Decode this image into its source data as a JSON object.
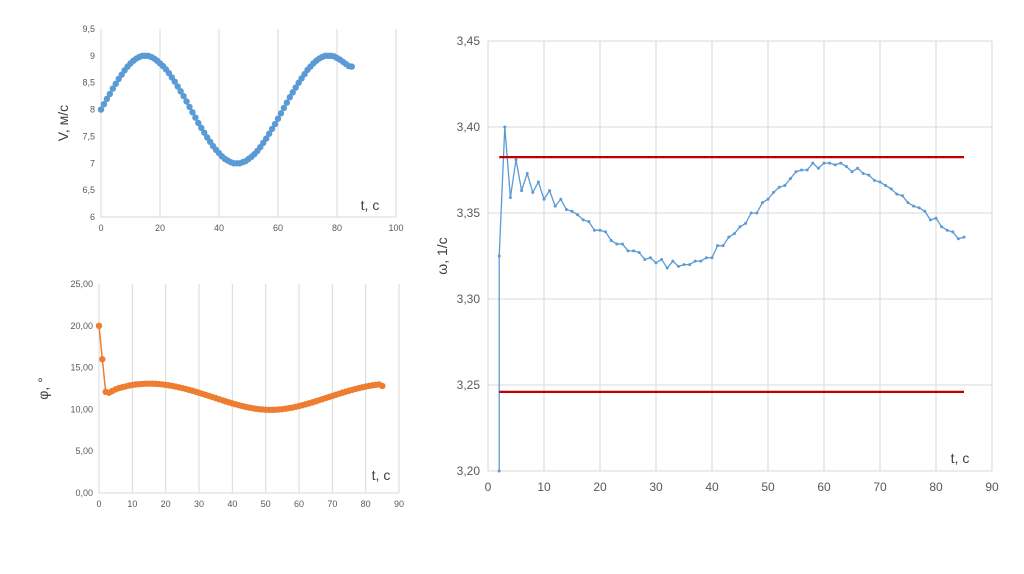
{
  "chart_data": [
    {
      "type": "scatter",
      "xlabel": "t, с",
      "ylabel": "V, м/с",
      "xlim": [
        0,
        100
      ],
      "ylim": [
        6,
        9.5
      ],
      "x_ticks": [
        "0",
        "20",
        "40",
        "60",
        "80",
        "100"
      ],
      "y_ticks": [
        "6",
        "6,5",
        "7",
        "7,5",
        "8",
        "8,5",
        "9",
        "9,5"
      ],
      "grid": "vertical",
      "series": [
        {
          "color": "#5b9bd5",
          "marker": "circle",
          "line": true,
          "x": [
            0,
            1,
            2,
            3,
            4,
            5,
            6,
            7,
            8,
            9,
            10,
            11,
            12,
            13,
            14,
            15,
            16,
            17,
            18,
            19,
            20,
            21,
            22,
            23,
            24,
            25,
            26,
            27,
            28,
            29,
            30,
            31,
            32,
            33,
            34,
            35,
            36,
            37,
            38,
            39,
            40,
            41,
            42,
            43,
            44,
            45,
            46,
            47,
            48,
            49,
            50,
            51,
            52,
            53,
            54,
            55,
            56,
            57,
            58,
            59,
            60,
            61,
            62,
            63,
            64,
            65,
            66,
            67,
            68,
            69,
            70,
            71,
            72,
            73,
            74,
            75,
            76,
            77,
            78,
            79,
            80,
            81,
            82,
            83,
            84,
            85
          ],
          "y": [
            8.0,
            8.1,
            8.2,
            8.29,
            8.39,
            8.48,
            8.57,
            8.65,
            8.73,
            8.8,
            8.86,
            8.91,
            8.95,
            8.98,
            9.0,
            9.0,
            9.0,
            8.98,
            8.95,
            8.91,
            8.86,
            8.81,
            8.75,
            8.68,
            8.6,
            8.52,
            8.43,
            8.34,
            8.25,
            8.15,
            8.05,
            7.95,
            7.85,
            7.75,
            7.66,
            7.57,
            7.48,
            7.4,
            7.32,
            7.25,
            7.19,
            7.13,
            7.08,
            7.05,
            7.02,
            7.0,
            7.0,
            7.0,
            7.02,
            7.04,
            7.08,
            7.12,
            7.17,
            7.23,
            7.3,
            7.38,
            7.46,
            7.55,
            7.64,
            7.73,
            7.83,
            7.93,
            8.03,
            8.13,
            8.23,
            8.32,
            8.41,
            8.5,
            8.58,
            8.66,
            8.74,
            8.8,
            8.86,
            8.91,
            8.95,
            8.98,
            9.0,
            9.0,
            9.0,
            8.99,
            8.96,
            8.93,
            8.89,
            8.85,
            8.81,
            8.8
          ]
        }
      ]
    },
    {
      "type": "scatter",
      "xlabel": "t, с",
      "ylabel": "φ, °",
      "xlim": [
        0,
        90
      ],
      "ylim": [
        0,
        25
      ],
      "x_ticks": [
        "0",
        "10",
        "20",
        "30",
        "40",
        "50",
        "60",
        "70",
        "80",
        "90"
      ],
      "y_ticks": [
        "0,00",
        "5,00",
        "10,00",
        "15,00",
        "20,00",
        "25,00"
      ],
      "grid": "vertical",
      "series": [
        {
          "color": "#ed7d31",
          "marker": "circle",
          "line": true,
          "x": [
            0,
            1,
            2,
            3,
            4,
            5,
            6,
            7,
            8,
            9,
            10,
            11,
            12,
            13,
            14,
            15,
            16,
            17,
            18,
            19,
            20,
            21,
            22,
            23,
            24,
            25,
            26,
            27,
            28,
            29,
            30,
            31,
            32,
            33,
            34,
            35,
            36,
            37,
            38,
            39,
            40,
            41,
            42,
            43,
            44,
            45,
            46,
            47,
            48,
            49,
            50,
            51,
            52,
            53,
            54,
            55,
            56,
            57,
            58,
            59,
            60,
            61,
            62,
            63,
            64,
            65,
            66,
            67,
            68,
            69,
            70,
            71,
            72,
            73,
            74,
            75,
            76,
            77,
            78,
            79,
            80,
            81,
            82,
            83,
            84,
            85
          ],
          "y": [
            20.0,
            16.0,
            12.1,
            12.0,
            12.2,
            12.4,
            12.55,
            12.65,
            12.75,
            12.85,
            12.92,
            12.98,
            13.02,
            13.05,
            13.07,
            13.08,
            13.08,
            13.06,
            13.03,
            12.99,
            12.94,
            12.88,
            12.81,
            12.73,
            12.64,
            12.55,
            12.45,
            12.34,
            12.23,
            12.11,
            11.99,
            11.87,
            11.74,
            11.61,
            11.48,
            11.35,
            11.22,
            11.09,
            10.96,
            10.84,
            10.72,
            10.61,
            10.5,
            10.4,
            10.31,
            10.22,
            10.15,
            10.08,
            10.03,
            9.99,
            9.96,
            9.95,
            9.95,
            9.96,
            9.99,
            10.03,
            10.08,
            10.15,
            10.22,
            10.31,
            10.4,
            10.5,
            10.61,
            10.72,
            10.84,
            10.96,
            11.09,
            11.22,
            11.35,
            11.48,
            11.61,
            11.74,
            11.87,
            11.99,
            12.11,
            12.23,
            12.34,
            12.45,
            12.55,
            12.64,
            12.73,
            12.81,
            12.88,
            12.94,
            12.98,
            12.8
          ]
        }
      ]
    },
    {
      "type": "line",
      "xlabel": "t, с",
      "ylabel": "ω, 1/с",
      "xlim": [
        0,
        90
      ],
      "ylim": [
        3.2,
        3.45
      ],
      "x_ticks": [
        "0",
        "10",
        "20",
        "30",
        "40",
        "50",
        "60",
        "70",
        "80",
        "90"
      ],
      "y_ticks": [
        "3,20",
        "3,25",
        "3,30",
        "3,35",
        "3,40",
        "3,45"
      ],
      "grid": "both",
      "series": [
        {
          "color": "#5b9bd5",
          "marker": "small-dot",
          "x": [
            2,
            2,
            3,
            4,
            5,
            6,
            7,
            8,
            9,
            10,
            11,
            12,
            13,
            14,
            15,
            16,
            17,
            18,
            19,
            20,
            21,
            22,
            23,
            24,
            25,
            26,
            27,
            28,
            29,
            30,
            31,
            32,
            33,
            34,
            35,
            36,
            37,
            38,
            39,
            40,
            41,
            42,
            43,
            44,
            45,
            46,
            47,
            48,
            49,
            50,
            51,
            52,
            53,
            54,
            55,
            56,
            57,
            58,
            59,
            60,
            61,
            62,
            63,
            64,
            65,
            66,
            67,
            68,
            69,
            70,
            71,
            72,
            73,
            74,
            75,
            76,
            77,
            78,
            79,
            80,
            81,
            82,
            83,
            84,
            85
          ],
          "y": [
            3.2,
            3.325,
            3.4,
            3.359,
            3.381,
            3.363,
            3.373,
            3.362,
            3.368,
            3.358,
            3.363,
            3.354,
            3.358,
            3.352,
            3.351,
            3.349,
            3.346,
            3.345,
            3.34,
            3.34,
            3.339,
            3.334,
            3.332,
            3.332,
            3.328,
            3.328,
            3.327,
            3.323,
            3.324,
            3.321,
            3.323,
            3.318,
            3.322,
            3.319,
            3.32,
            3.32,
            3.322,
            3.322,
            3.324,
            3.324,
            3.331,
            3.331,
            3.336,
            3.338,
            3.342,
            3.344,
            3.35,
            3.35,
            3.356,
            3.358,
            3.362,
            3.365,
            3.366,
            3.37,
            3.374,
            3.375,
            3.375,
            3.379,
            3.376,
            3.379,
            3.379,
            3.378,
            3.379,
            3.377,
            3.374,
            3.376,
            3.373,
            3.372,
            3.369,
            3.368,
            3.366,
            3.364,
            3.361,
            3.36,
            3.356,
            3.354,
            3.353,
            3.351,
            3.346,
            3.347,
            3.342,
            3.34,
            3.339,
            3.335,
            3.336
          ]
        },
        {
          "color": "#c00000",
          "x": [
            2,
            85
          ],
          "y": [
            3.3825,
            3.3825
          ]
        },
        {
          "color": "#c00000",
          "x": [
            2,
            85
          ],
          "y": [
            3.246,
            3.246
          ]
        }
      ]
    }
  ]
}
